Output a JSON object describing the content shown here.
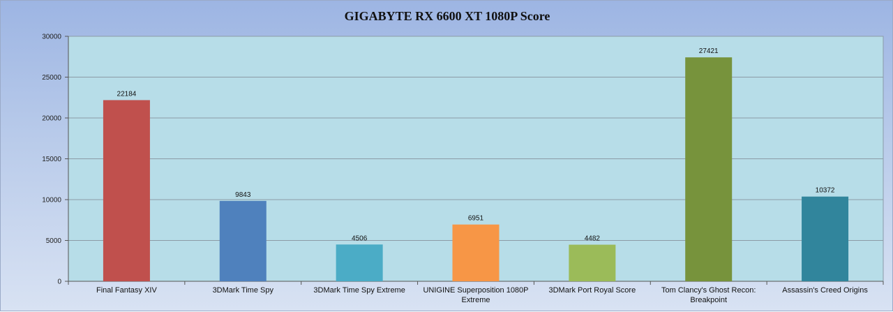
{
  "chart_data": {
    "type": "bar",
    "title": "GIGABYTE RX 6600 XT 1080P Score",
    "xlabel": "",
    "ylabel": "",
    "ylim": [
      0,
      30000
    ],
    "yticks": [
      0,
      5000,
      10000,
      15000,
      20000,
      25000,
      30000
    ],
    "grid": true,
    "legend": "none",
    "categories": [
      "Final Fantasy XIV",
      "3DMark Time Spy",
      "3DMark Time Spy Extreme",
      "UNIGINE Superposition 1080P Extreme",
      "3DMark Port Royal Score",
      "Tom Clancy's Ghost Recon: Breakpoint",
      "Assassin's Creed Origins"
    ],
    "values": [
      22184,
      9843,
      4506,
      6951,
      4482,
      27421,
      10372
    ],
    "bar_colors": [
      "#c0504d",
      "#4f81bd",
      "#4bacc6",
      "#f79646",
      "#9bbb59",
      "#77933c",
      "#31859c"
    ],
    "plot_background": "#b7dde8",
    "frame_background": "#a8bfe6"
  }
}
